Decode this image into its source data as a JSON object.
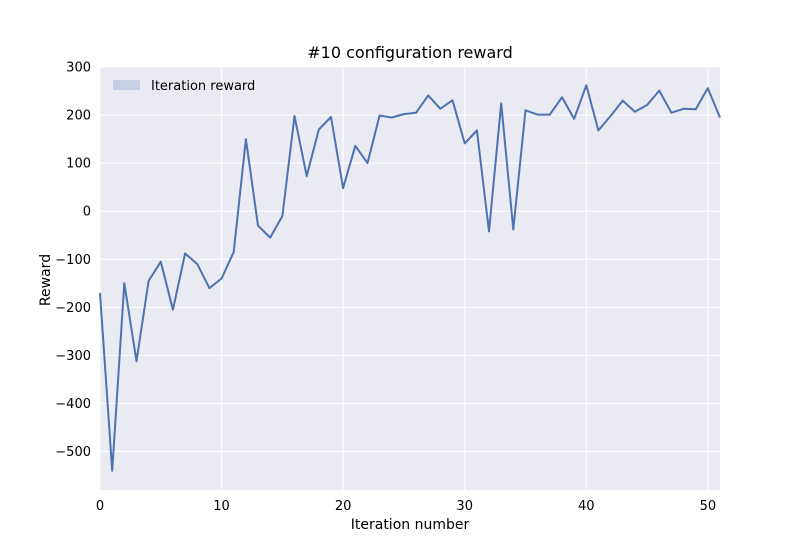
{
  "chart_data": {
    "type": "line",
    "title": "#10 configuration reward",
    "xlabel": "Iteration number",
    "ylabel": "Reward",
    "xlim": [
      0,
      51
    ],
    "ylim": [
      -580,
      300
    ],
    "xticks": [
      0,
      10,
      20,
      30,
      40,
      50
    ],
    "yticks": [
      -500,
      -400,
      -300,
      -200,
      -100,
      0,
      100,
      200,
      300
    ],
    "grid": true,
    "legend_position": "top-left",
    "colors": {
      "line": "#4c72b0",
      "plot_bg": "#eaeaf2",
      "grid": "#ffffff",
      "legend_patch": "#c7cfe3"
    },
    "series": [
      {
        "name": "Iteration reward",
        "x": [
          0,
          1,
          2,
          3,
          4,
          5,
          6,
          7,
          8,
          9,
          10,
          11,
          12,
          13,
          14,
          15,
          16,
          17,
          18,
          19,
          20,
          21,
          22,
          23,
          24,
          25,
          26,
          27,
          28,
          29,
          30,
          31,
          32,
          33,
          34,
          35,
          36,
          37,
          38,
          39,
          40,
          41,
          42,
          43,
          44,
          45,
          46,
          47,
          48,
          49,
          50,
          51
        ],
        "y": [
          -170,
          -540,
          -150,
          -312,
          -145,
          -105,
          -205,
          -88,
          -110,
          -160,
          -140,
          -85,
          150,
          -30,
          -55,
          -10,
          198,
          73,
          170,
          196,
          48,
          136,
          100,
          199,
          195,
          202,
          205,
          241,
          213,
          231,
          141,
          168,
          -42,
          224,
          -38,
          210,
          201,
          201,
          237,
          192,
          262,
          168,
          198,
          230,
          207,
          221,
          251,
          205,
          213,
          212,
          256,
          195
        ]
      }
    ]
  }
}
